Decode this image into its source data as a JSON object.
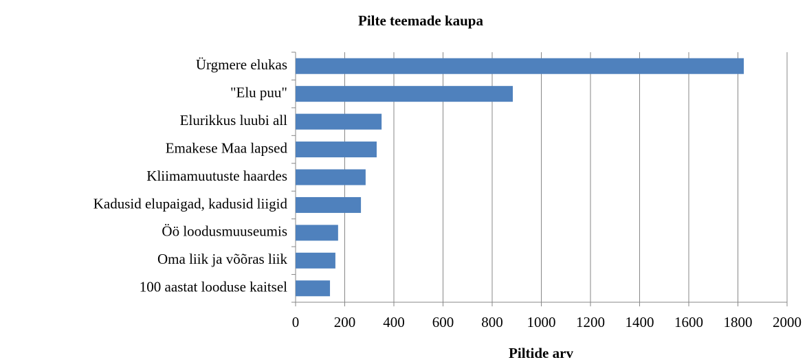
{
  "chart_data": {
    "type": "hbar",
    "title": "Pilte teemade kaupa",
    "x_label": "Piltide arv",
    "categories": [
      "Ürgmere elukas",
      "\"Elu puu\"",
      "Elurikkus luubi all",
      "Emakese Maa lapsed",
      "Kliimamuutuste haardes",
      "Kadusid elupaigad, kadusid liigid",
      "Öö loodusmuuseumis",
      "Oma liik ja võõras liik",
      "100 aastat looduse kaitsel"
    ],
    "values": [
      1824,
      884,
      350,
      330,
      285,
      266,
      173,
      162,
      140
    ],
    "color": "#4f81bd",
    "xlim": [
      0,
      2000
    ],
    "xticks": [
      0,
      200,
      400,
      600,
      800,
      1000,
      1200,
      1400,
      1600,
      1800,
      2000
    ],
    "grid": true
  }
}
